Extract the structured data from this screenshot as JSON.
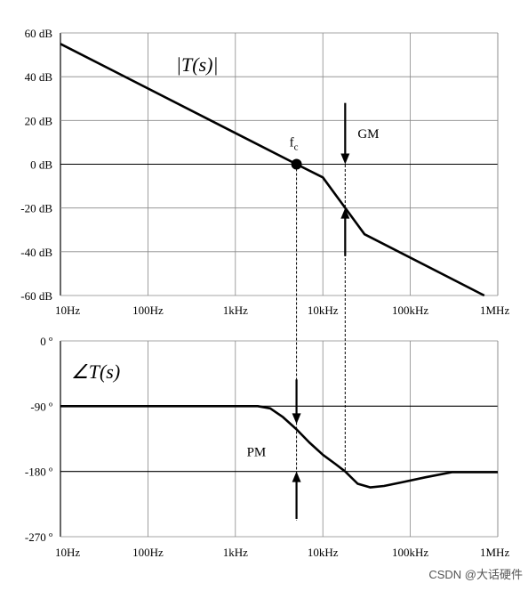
{
  "chart_data": [
    {
      "type": "line",
      "title": "|T(s)|",
      "x_scale": "log",
      "xlim": [
        10,
        1000000
      ],
      "ylim": [
        -60,
        60
      ],
      "x_ticks": [
        10,
        100,
        1000,
        10000,
        100000,
        1000000
      ],
      "x_tick_labels": [
        "10Hz",
        "100Hz",
        "1kHz",
        "10kHz",
        "100kHz",
        "1MHz"
      ],
      "y_ticks": [
        60,
        40,
        20,
        0,
        -20,
        -40,
        -60
      ],
      "y_tick_labels": [
        "60 dB",
        "40 dB",
        "20 dB",
        "0 dB",
        "-20 dB",
        "-40 dB",
        "-60 dB"
      ],
      "grid": true,
      "series": [
        {
          "x": [
            10,
            5000,
            10000,
            30000,
            700000
          ],
          "y": [
            55,
            0,
            -6,
            -32,
            -60
          ]
        }
      ],
      "annotations": {
        "crossover_label": "fc",
        "crossover_freq": 5000,
        "gm_label": "GM",
        "gm_freq": 18000,
        "gm_gain": -20
      }
    },
    {
      "type": "line",
      "title": "∠T(s)",
      "x_scale": "log",
      "xlim": [
        10,
        1000000
      ],
      "ylim": [
        -270,
        0
      ],
      "x_ticks": [
        10,
        100,
        1000,
        10000,
        100000,
        1000000
      ],
      "x_tick_labels": [
        "10Hz",
        "100Hz",
        "1kHz",
        "10kHz",
        "100kHz",
        "1MHz"
      ],
      "y_ticks": [
        0,
        -90,
        -180,
        -270
      ],
      "y_tick_labels": [
        "0 º",
        "-90 º",
        "-180 º",
        "-270 º"
      ],
      "grid": true,
      "series": [
        {
          "x": [
            10,
            1800,
            2500,
            3500,
            5000,
            7000,
            10000,
            14000,
            18000,
            25000,
            35000,
            50000,
            80000,
            150000,
            300000,
            1000000
          ],
          "y": [
            -90,
            -90,
            -93,
            -105,
            -122,
            -140,
            -157,
            -170,
            -180,
            -197,
            -202,
            -200,
            -195,
            -188,
            -181,
            -181
          ]
        }
      ],
      "annotations": {
        "pm_label": "PM",
        "pm_freq": 5000,
        "pm_phase": -122
      }
    }
  ],
  "watermark": "CSDN @大话硬件"
}
